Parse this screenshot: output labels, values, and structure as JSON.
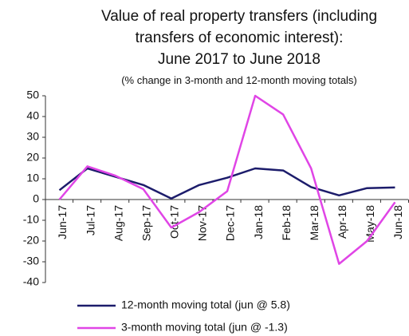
{
  "chart_data": {
    "type": "line",
    "title": [
      "Value of real property transfers (including",
      "transfers of economic interest):",
      "June 2017 to June 2018"
    ],
    "subtitle": "(% change in 3-month and 12-month moving totals)",
    "categories": [
      "Jun-17",
      "Jul-17",
      "Aug-17",
      "Sep-17",
      "Oct-17",
      "Nov-17",
      "Dec-17",
      "Jan-18",
      "Feb-18",
      "Mar-18",
      "Apr-18",
      "May-18",
      "Jun-18"
    ],
    "series": [
      {
        "name": "12-month moving total (jun @ 5.8)",
        "color": "#1c1c6b",
        "values": [
          4.5,
          15,
          11,
          7,
          0.5,
          7,
          10.5,
          15,
          14,
          6,
          2,
          5.5,
          5.8
        ]
      },
      {
        "name": "3-month moving total (jun @ -1.3)",
        "color": "#e045e6",
        "values": [
          0,
          16,
          11.5,
          5,
          -13.5,
          -6,
          4,
          50,
          41,
          15,
          -31,
          -20,
          -1.3
        ]
      }
    ],
    "ylim": [
      -40,
      50
    ],
    "yticks": [
      -40,
      -30,
      -20,
      -10,
      0,
      10,
      20,
      30,
      40,
      50
    ],
    "grid": false
  }
}
